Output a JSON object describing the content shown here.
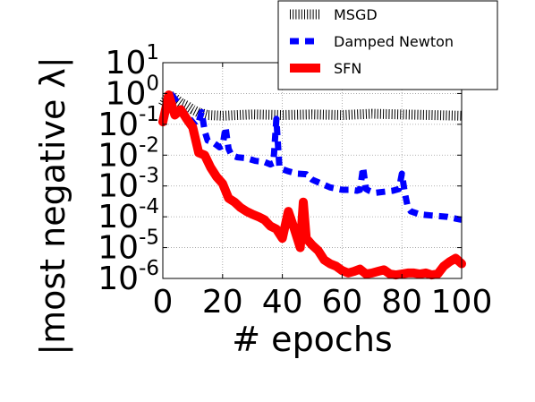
{
  "chart_data": {
    "type": "line",
    "xlabel": "# epochs",
    "ylabel": "|most negative λ|",
    "xlim": [
      0,
      100
    ],
    "ylim": [
      1e-06,
      10
    ],
    "yscale": "log",
    "grid": true,
    "legend_position": "top-right (outside axes)",
    "x_ticks": [
      {
        "value": 0,
        "label": "0"
      },
      {
        "value": 20,
        "label": "20"
      },
      {
        "value": 40,
        "label": "40"
      },
      {
        "value": 60,
        "label": "60"
      },
      {
        "value": 80,
        "label": "80"
      },
      {
        "value": 100,
        "label": "100"
      }
    ],
    "y_ticks": [
      {
        "value": 10,
        "base": "10",
        "exp": "1"
      },
      {
        "value": 1,
        "base": "10",
        "exp": "0"
      },
      {
        "value": 0.1,
        "base": "10",
        "exp": "-1"
      },
      {
        "value": 0.01,
        "base": "10",
        "exp": "-2"
      },
      {
        "value": 0.001,
        "base": "10",
        "exp": "-3"
      },
      {
        "value": 0.0001,
        "base": "10",
        "exp": "-4"
      },
      {
        "value": 1e-05,
        "base": "10",
        "exp": "-5"
      },
      {
        "value": 1e-06,
        "base": "10",
        "exp": "-6"
      }
    ],
    "series": [
      {
        "name": "MSGD",
        "color": "#000000",
        "style": "dotted",
        "x": [
          0,
          2,
          4,
          6,
          8,
          10,
          12,
          15,
          20,
          25,
          30,
          40,
          50,
          60,
          70,
          80,
          90,
          100
        ],
        "y": [
          0.4,
          0.9,
          0.7,
          0.5,
          0.4,
          0.3,
          0.24,
          0.2,
          0.19,
          0.2,
          0.21,
          0.2,
          0.21,
          0.2,
          0.22,
          0.21,
          0.2,
          0.19
        ]
      },
      {
        "name": "Damped Newton",
        "color": "#0000ff",
        "style": "dashed",
        "x": [
          0,
          3,
          5,
          7,
          9,
          11,
          12,
          13,
          14,
          15,
          17,
          19,
          20,
          21,
          22,
          23,
          25,
          28,
          31,
          34,
          36,
          37,
          38,
          39,
          40,
          42,
          45,
          48,
          50,
          53,
          56,
          60,
          63,
          65,
          66,
          67,
          68,
          69,
          71,
          74,
          77,
          79,
          80,
          81,
          82,
          83,
          86,
          90,
          95,
          100
        ],
        "y": [
          0.1,
          0.9,
          0.5,
          0.25,
          0.15,
          0.09,
          0.12,
          0.25,
          0.06,
          0.03,
          0.025,
          0.018,
          0.02,
          0.08,
          0.016,
          0.01,
          0.0085,
          0.008,
          0.0065,
          0.006,
          0.005,
          0.0055,
          0.15,
          0.004,
          0.0035,
          0.003,
          0.0025,
          0.0024,
          0.0016,
          0.0012,
          0.0009,
          0.00075,
          0.00075,
          0.0007,
          0.00075,
          0.004,
          0.0008,
          0.0007,
          0.0006,
          0.00065,
          0.0007,
          0.0008,
          0.0025,
          0.0006,
          0.0002,
          0.00015,
          0.00012,
          0.00011,
          0.0001,
          8e-05
        ]
      },
      {
        "name": "SFN",
        "color": "#ff0000",
        "style": "solid",
        "x": [
          0,
          2,
          4,
          6,
          8,
          10,
          12,
          14,
          16,
          18,
          20,
          22,
          24,
          26,
          28,
          30,
          32,
          34,
          36,
          38,
          40,
          42,
          44,
          46,
          47,
          48,
          50,
          52,
          54,
          56,
          58,
          60,
          62,
          64,
          66,
          68,
          70,
          72,
          74,
          76,
          78,
          80,
          82,
          84,
          86,
          88,
          90,
          92,
          94,
          96,
          98,
          100
        ],
        "y": [
          0.12,
          0.9,
          0.2,
          0.3,
          0.15,
          0.08,
          0.012,
          0.01,
          0.004,
          0.002,
          0.0012,
          0.0004,
          0.0003,
          0.0002,
          0.00015,
          0.00012,
          0.0001,
          8e-05,
          5e-05,
          4e-05,
          2e-05,
          0.00015,
          4e-05,
          1e-05,
          0.0003,
          2e-05,
          1.2e-05,
          8e-06,
          4e-06,
          3e-06,
          2.5e-06,
          1.8e-06,
          1.5e-06,
          1.7e-06,
          2e-06,
          1.4e-06,
          1.5e-06,
          1.7e-06,
          1.9e-06,
          1.4e-06,
          1.3e-06,
          1.4e-06,
          1.5e-06,
          1.5e-06,
          1.4e-06,
          1.5e-06,
          1.3e-06,
          1.4e-06,
          2.5e-06,
          3.5e-06,
          4.5e-06,
          3e-06
        ]
      }
    ]
  }
}
